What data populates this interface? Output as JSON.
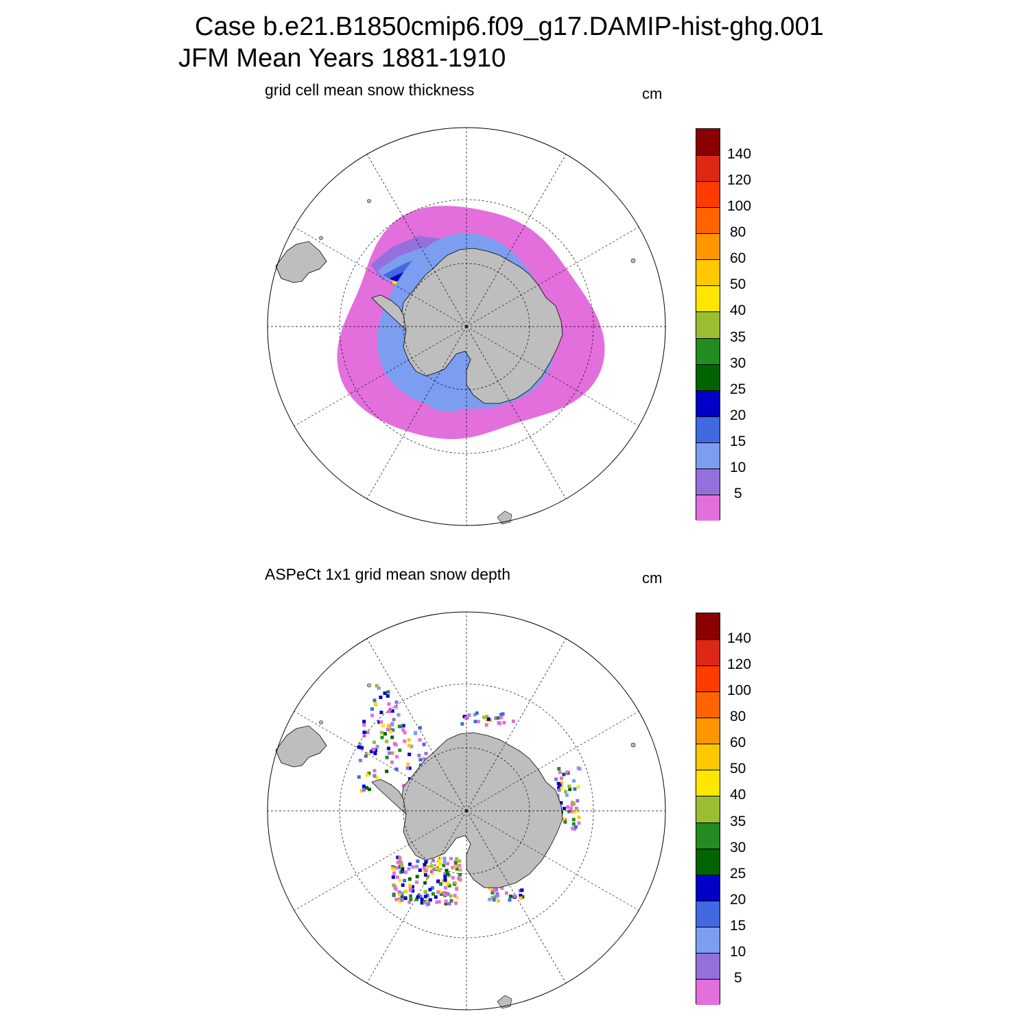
{
  "header": {
    "title_line1": "Case b.e21.B1850cmip6.f09_g17.DAMIP-hist-ghg.001",
    "title_line2": "JFM Mean     Years 1881-1910"
  },
  "panels": [
    {
      "subtitle": "grid cell mean snow thickness",
      "unit": "cm",
      "kind": "model"
    },
    {
      "subtitle": "ASPeCt 1x1 grid mean snow depth",
      "unit": "cm",
      "kind": "observation"
    }
  ],
  "colorbar": {
    "labels": [
      "140",
      "120",
      "100",
      "80",
      "60",
      "50",
      "40",
      "35",
      "30",
      "25",
      "20",
      "15",
      "10",
      "5"
    ],
    "colors": [
      "#8b0000",
      "#dc2814",
      "#ff3c00",
      "#ff6400",
      "#ff9600",
      "#ffc800",
      "#ffe600",
      "#9abe32",
      "#228b22",
      "#006400",
      "#0000c8",
      "#4169e1",
      "#7b9ef0",
      "#9370db",
      "#e36fdd"
    ]
  },
  "map_style": {
    "land": "#bebebe",
    "ocean": "#ffffff",
    "grid": "#000000"
  }
}
